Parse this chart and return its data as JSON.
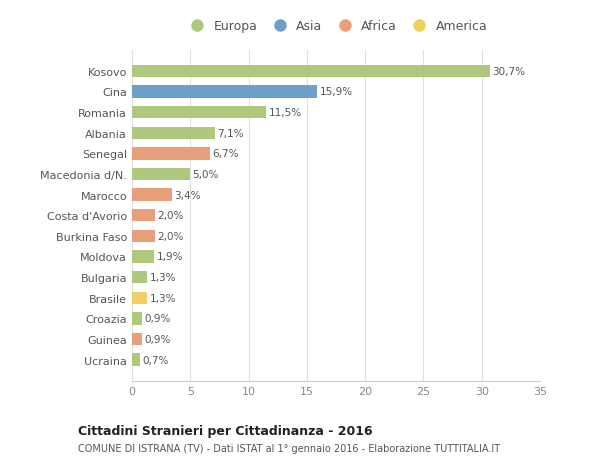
{
  "countries": [
    "Kosovo",
    "Cina",
    "Romania",
    "Albania",
    "Senegal",
    "Macedonia d/N.",
    "Marocco",
    "Costa d'Avorio",
    "Burkina Faso",
    "Moldova",
    "Bulgaria",
    "Brasile",
    "Croazia",
    "Guinea",
    "Ucraina"
  ],
  "values": [
    30.7,
    15.9,
    11.5,
    7.1,
    6.7,
    5.0,
    3.4,
    2.0,
    2.0,
    1.9,
    1.3,
    1.3,
    0.9,
    0.9,
    0.7
  ],
  "labels": [
    "30,7%",
    "15,9%",
    "11,5%",
    "7,1%",
    "6,7%",
    "5,0%",
    "3,4%",
    "2,0%",
    "2,0%",
    "1,9%",
    "1,3%",
    "1,3%",
    "0,9%",
    "0,9%",
    "0,7%"
  ],
  "continents": [
    "Europa",
    "Asia",
    "Europa",
    "Europa",
    "Africa",
    "Europa",
    "Africa",
    "Africa",
    "Africa",
    "Europa",
    "Europa",
    "America",
    "Europa",
    "Africa",
    "Europa"
  ],
  "colors": {
    "Europa": "#aec97e",
    "Asia": "#6e9fca",
    "Africa": "#e8a07a",
    "America": "#f0d060"
  },
  "title": "Cittadini Stranieri per Cittadinanza - 2016",
  "subtitle": "COMUNE DI ISTRANA (TV) - Dati ISTAT al 1° gennaio 2016 - Elaborazione TUTTITALIA.IT",
  "xlim": [
    0,
    35
  ],
  "xticks": [
    0,
    5,
    10,
    15,
    20,
    25,
    30,
    35
  ],
  "background_color": "#ffffff",
  "grid_color": "#e0e0e0"
}
